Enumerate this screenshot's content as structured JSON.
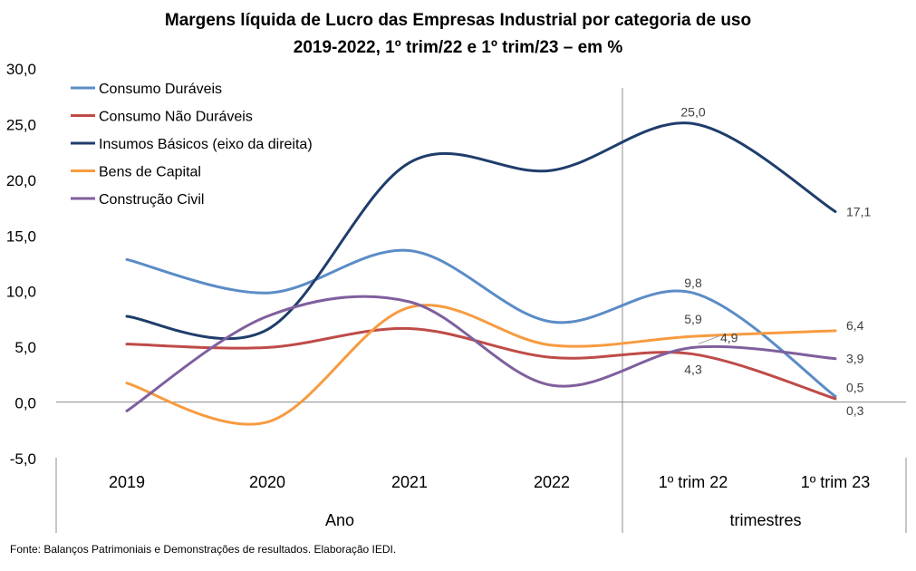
{
  "chart_data": {
    "type": "line",
    "title": "Margens líquida de Lucro das Empresas Industrial por categoria de uso",
    "subtitle": "2019-2022, 1º trim/22 e 1º trim/23 – em %",
    "categories": [
      "2019",
      "2020",
      "2021",
      "2022",
      "1º trim 22",
      "1º trim 23"
    ],
    "group_labels": [
      "Ano",
      "trimestres"
    ],
    "ylim": [
      -5,
      30
    ],
    "yticks": [
      "-5,0",
      "0,0",
      "5,0",
      "10,0",
      "15,0",
      "20,0",
      "25,0",
      "30,0"
    ],
    "legend_position": "top-left",
    "grid": false,
    "series": [
      {
        "name": "Consumo Duráveis",
        "color": "#5B8CC6",
        "values": [
          12.8,
          9.8,
          13.6,
          7.2,
          9.8,
          0.5
        ]
      },
      {
        "name": "Consumo Não Duráveis",
        "color": "#BE4B48",
        "values": [
          5.2,
          4.9,
          6.6,
          4.0,
          4.3,
          0.3
        ]
      },
      {
        "name": "Insumos Básicos (eixo da direita)",
        "color": "#1F3D6B",
        "values": [
          7.7,
          6.5,
          21.5,
          20.8,
          25.0,
          17.1
        ]
      },
      {
        "name": "Bens de Capital",
        "color": "#F79B40",
        "values": [
          1.7,
          -1.8,
          8.5,
          5.1,
          5.9,
          6.4
        ]
      },
      {
        "name": "Construção Civil",
        "color": "#7F5F9E",
        "values": [
          -0.8,
          7.7,
          9.0,
          1.5,
          4.9,
          3.9
        ]
      }
    ],
    "data_labels": [
      {
        "series": 2,
        "index": 4,
        "text": "25,0"
      },
      {
        "series": 2,
        "index": 5,
        "text": "17,1"
      },
      {
        "series": 0,
        "index": 4,
        "text": "9,8"
      },
      {
        "series": 0,
        "index": 5,
        "text": "0,5"
      },
      {
        "series": 1,
        "index": 4,
        "text": "4,3"
      },
      {
        "series": 1,
        "index": 5,
        "text": "0,3"
      },
      {
        "series": 3,
        "index": 4,
        "text": "5,9"
      },
      {
        "series": 3,
        "index": 5,
        "text": "6,4"
      },
      {
        "series": 4,
        "index": 4,
        "text": "4,9"
      },
      {
        "series": 4,
        "index": 5,
        "text": "3,9"
      }
    ]
  },
  "source": "Fonte: Balanços Patrimoniais e Demonstrações de resultados. Elaboração IEDI."
}
